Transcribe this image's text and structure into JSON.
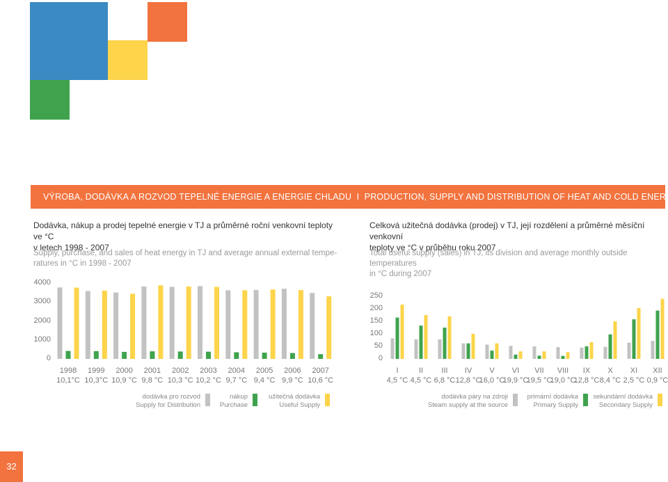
{
  "colors": {
    "gray": "#c2c2c2",
    "green": "#3fa34d",
    "yellow": "#fdd44a",
    "orange": "#f2733e",
    "blue": "#3b8ac4"
  },
  "banner": {
    "text_cz": "Výroba, dodávka a rozvod tepelné energie a energie chladu",
    "separator": "I",
    "text_en": "Production, Supply and Distribution of Heat and Cold Energy"
  },
  "left_heading": {
    "line1": "Dodávka, nákup a prodej tepelné energie v TJ a průměrné roční venkovní teploty ve °C",
    "line2": "v letech 1998 - 2007",
    "sub1": "Supply, purchase, and sales of heat energy in TJ and average annual external tempe-",
    "sub2": "ratures in °C in 1998 - 2007"
  },
  "right_heading": {
    "line1": "Celková užitečná dodávka (prodej) v TJ, její rozdělení a průměrné měsíční venkovní",
    "line2": "teploty ve °C v průběhu roku 2007",
    "sub1": "Total useful supply (sales) in TJ, its division and average monthly outside temperatures",
    "sub2": "in °C during 2007"
  },
  "legend_left": [
    {
      "cz": "dodávka pro rozvod",
      "en": "Supply for Distribution",
      "color": "#c2c2c2"
    },
    {
      "cz": "nákup",
      "en": "Purchase",
      "color": "#3fa34d"
    },
    {
      "cz": "užitečná dodávka",
      "en": "Useful Supply",
      "color": "#fdd44a"
    }
  ],
  "legend_right": [
    {
      "cz": "dodávka páry na zdroji",
      "en": "Steam supply at the source",
      "color": "#c2c2c2"
    },
    {
      "cz": "primární dodávka",
      "en": "Primary Supply",
      "color": "#3fa34d"
    },
    {
      "cz": "sekundární dodávka",
      "en": "Secondary Supply",
      "color": "#fdd44a"
    }
  ],
  "page_number": "32",
  "chart_data": [
    {
      "type": "bar",
      "categories": [
        "1998",
        "1999",
        "2000",
        "2001",
        "2002",
        "2003",
        "2004",
        "2005",
        "2006",
        "2007"
      ],
      "category_sublabels": [
        "10,1°C",
        "10,3°C",
        "10,9 °C",
        "9,8 °C",
        "10,3 °C",
        "10,2 °C",
        "9,7 °C",
        "9,4 °C",
        "9,9 °C",
        "10,6 °C"
      ],
      "yticks": [
        "0",
        "1000",
        "2000",
        "3000",
        "4000"
      ],
      "ylim": [
        0,
        4000
      ],
      "series": [
        {
          "name": "dodávka pro rozvod",
          "color": "#c2c2c2",
          "values": [
            3770,
            3580,
            3500,
            3820,
            3800,
            3840,
            3620,
            3640,
            3700,
            3480
          ]
        },
        {
          "name": "nákup",
          "color": "#3fa34d",
          "values": [
            420,
            410,
            370,
            400,
            390,
            380,
            350,
            330,
            310,
            250
          ]
        },
        {
          "name": "užitečná dodávka",
          "color": "#fdd44a",
          "values": [
            3760,
            3600,
            3440,
            3880,
            3820,
            3800,
            3620,
            3660,
            3630,
            3300
          ]
        }
      ]
    },
    {
      "type": "bar",
      "categories": [
        "I",
        "II",
        "III",
        "IV",
        "V",
        "VI",
        "VII",
        "VIII",
        "IX",
        "X",
        "XI",
        "XII"
      ],
      "category_sublabels": [
        "4,5 °C",
        "4,5 °C",
        "6,8 °C",
        "12,8 °C",
        "16,0 °C",
        "19,9 °C",
        "19,5 °C",
        "19,0 °C",
        "12,8 °C",
        "8,4 °C",
        "2,5 °C",
        "0,9 °C"
      ],
      "yticks": [
        "0",
        "50",
        "100",
        "150",
        "200",
        "250"
      ],
      "ylim": [
        0,
        250
      ],
      "series": [
        {
          "name": "dodávka páry na zdroji",
          "color": "#c2c2c2",
          "values": [
            82,
            78,
            78,
            62,
            57,
            52,
            50,
            47,
            45,
            48,
            65,
            72
          ]
        },
        {
          "name": "primární dodávka",
          "color": "#3fa34d",
          "values": [
            165,
            133,
            125,
            62,
            33,
            17,
            13,
            12,
            50,
            98,
            158,
            193
          ]
        },
        {
          "name": "sekundární dodávka",
          "color": "#fdd44a",
          "values": [
            217,
            175,
            170,
            100,
            62,
            30,
            30,
            27,
            67,
            150,
            203,
            240
          ]
        }
      ]
    }
  ]
}
